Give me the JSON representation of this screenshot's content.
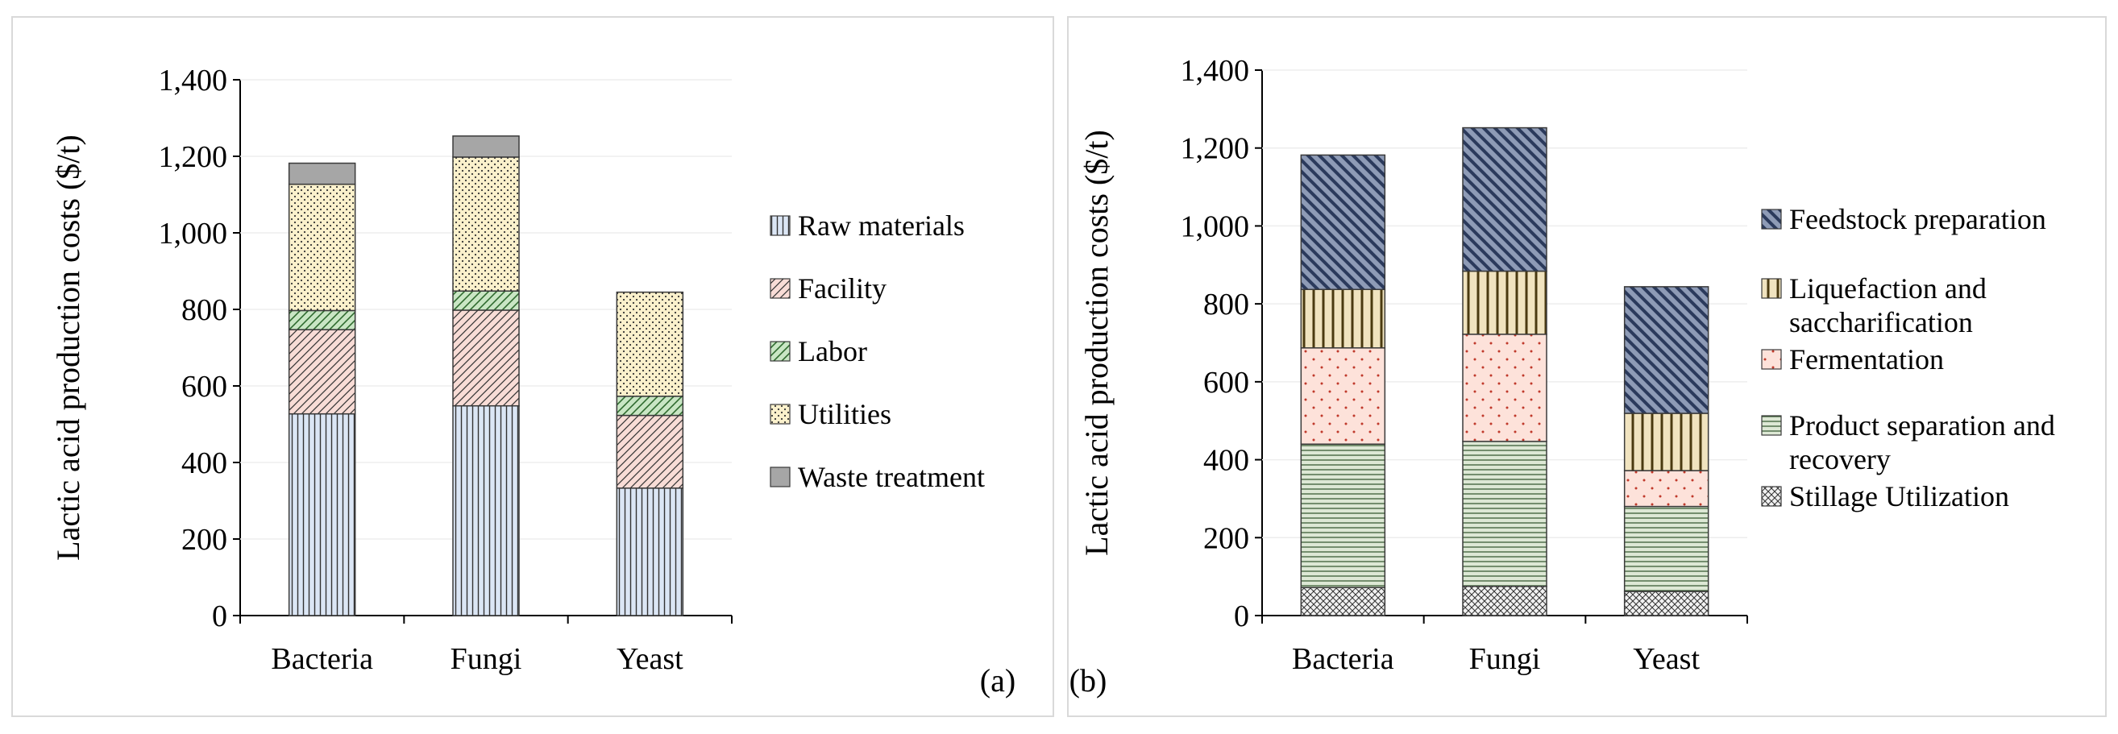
{
  "chart_data": [
    {
      "type": "bar",
      "stacked": true,
      "panel_label": "(a)",
      "categories": [
        "Bacteria",
        "Fungi",
        "Yeast"
      ],
      "ylabel": "Lactic acid production costs ($/t)",
      "xlabel": "",
      "ylim": [
        0,
        1400
      ],
      "yticks": [
        "0",
        "200",
        "400",
        "600",
        "800",
        "1,000",
        "1,200",
        "1,400"
      ],
      "legend_position": "right",
      "series": [
        {
          "name": "Raw materials",
          "values": [
            527,
            548,
            333
          ],
          "color": "#dbe6f5",
          "pattern": "vlines"
        },
        {
          "name": "Facility",
          "values": [
            220,
            250,
            190
          ],
          "color": "#f8dcd6",
          "pattern": "diag"
        },
        {
          "name": "Labor",
          "values": [
            50,
            50,
            50
          ],
          "color": "#c9e6c4",
          "pattern": "crossdiag"
        },
        {
          "name": "Utilities",
          "values": [
            330,
            350,
            272
          ],
          "color": "#fbf1cc",
          "pattern": "dots"
        },
        {
          "name": "Waste treatment",
          "values": [
            55,
            55,
            0
          ],
          "color": "#a6a6a6",
          "pattern": "solid"
        }
      ]
    },
    {
      "type": "bar",
      "stacked": true,
      "panel_label": "(b)",
      "categories": [
        "Bacteria",
        "Fungi",
        "Yeast"
      ],
      "ylabel": "Lactic acid production costs ($/t)",
      "xlabel": "",
      "ylim": [
        0,
        1400
      ],
      "yticks": [
        "0",
        "200",
        "400",
        "600",
        "800",
        "1,000",
        "1,200",
        "1,400"
      ],
      "legend_position": "right",
      "series": [
        {
          "name": "Stillage Utilization",
          "values": [
            72,
            75,
            62
          ],
          "color": "#f2f2f2",
          "pattern": "checker"
        },
        {
          "name": "Product separation and recovery",
          "values": [
            368,
            372,
            218
          ],
          "color": "#dde8d5",
          "pattern": "hlines"
        },
        {
          "name": "Fermentation",
          "values": [
            247,
            275,
            92
          ],
          "color": "#fde2da",
          "pattern": "sparsedots"
        },
        {
          "name": "Liquefaction and saccharification",
          "values": [
            150,
            162,
            147
          ],
          "color": "#f0e3bf",
          "pattern": "thickv"
        },
        {
          "name": "Feedstock preparation",
          "values": [
            345,
            368,
            325
          ],
          "color": "#8e9bb6",
          "pattern": "diagdark"
        }
      ]
    }
  ]
}
